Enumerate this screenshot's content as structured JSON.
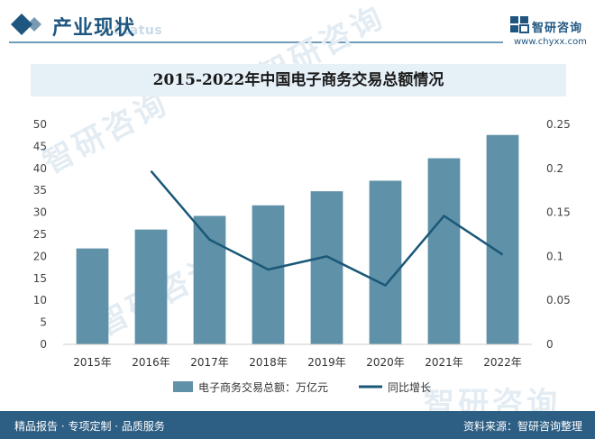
{
  "header": {
    "section_title": "产业现状",
    "section_subtitle": "Status",
    "brand_name": "智研咨询",
    "brand_url": "www.chyxx.com"
  },
  "watermark_text": "智研咨询",
  "footer": {
    "left": "精品报告 · 专项定制 · 品质服务",
    "right": "资料来源：智研咨询整理"
  },
  "colors": {
    "bar": "#5f91a8",
    "line": "#1a5878",
    "accent": "#1f5680",
    "footer_bg": "#2d5e84",
    "title_band": "#e6f0f7"
  },
  "chart_data": {
    "type": "bar",
    "title": "2015-2022年中国电子商务交易总额情况",
    "categories": [
      "2015年",
      "2016年",
      "2017年",
      "2018年",
      "2019年",
      "2020年",
      "2021年",
      "2022年"
    ],
    "series": [
      {
        "name": "电子商务交易总额：万亿元",
        "type": "bar",
        "axis": "left",
        "values": [
          21.8,
          26.1,
          29.2,
          31.6,
          34.8,
          37.2,
          42.3,
          47.6
        ]
      },
      {
        "name": "同比增长",
        "type": "line",
        "axis": "right",
        "values": [
          null,
          0.197,
          0.119,
          0.085,
          0.1,
          0.067,
          0.146,
          0.102
        ]
      }
    ],
    "ylim_left": [
      0,
      50
    ],
    "yticks_left": [
      "0",
      "5",
      "10",
      "15",
      "20",
      "25",
      "30",
      "35",
      "40",
      "45",
      "50"
    ],
    "ylim_right": [
      0,
      0.25
    ],
    "yticks_right": [
      "0",
      "0.05",
      "0.1",
      "0.15",
      "0.2",
      "0.25"
    ],
    "grid": false,
    "legend_position": "bottom-center"
  }
}
